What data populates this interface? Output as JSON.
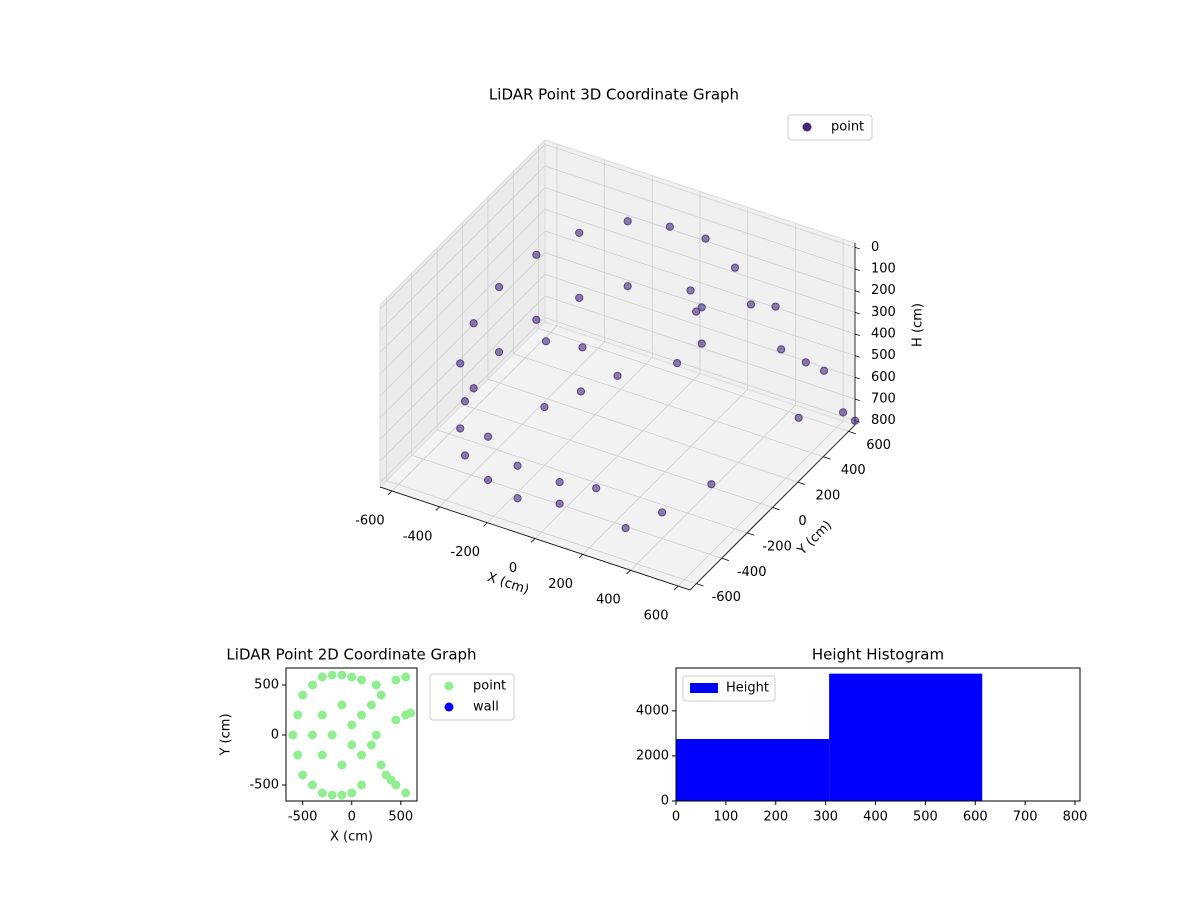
{
  "chart_data": [
    {
      "type": "scatter3d",
      "title": "LiDAR Point 3D Coordinate Graph",
      "xlabel": "X (cm)",
      "ylabel": "Y (cm)",
      "zlabel": "H (cm)",
      "legend": "upper right",
      "xlim": [
        -650,
        650
      ],
      "ylim": [
        -650,
        650
      ],
      "zlim": [
        820,
        -20
      ],
      "xticks": [
        -600,
        -400,
        -200,
        0,
        200,
        400,
        600
      ],
      "yticks": [
        -600,
        -400,
        -200,
        0,
        200,
        400,
        600
      ],
      "zticks": [
        0,
        100,
        200,
        300,
        400,
        500,
        600,
        700,
        800
      ],
      "series": [
        {
          "name": "point",
          "color": "#46287a",
          "x": [
            -500,
            -400,
            -250,
            -100,
            50,
            200,
            -550,
            -550,
            -500,
            -400,
            -250,
            -100,
            50,
            150,
            -500,
            -400,
            -250,
            -550,
            -550,
            -500,
            -400,
            -250,
            -100,
            50,
            -300,
            -200,
            -100,
            0,
            -200,
            200,
            250,
            220,
            300,
            250,
            400,
            450,
            500,
            550,
            600,
            600,
            500,
            400,
            300,
            600,
            650
          ],
          "y": [
            300,
            450,
            550,
            600,
            600,
            550,
            100,
            -100,
            -300,
            -450,
            -550,
            -600,
            -550,
            -450,
            300,
            450,
            550,
            100,
            -100,
            -300,
            -450,
            -550,
            -600,
            -550,
            0,
            100,
            -100,
            0,
            -200,
            200,
            150,
            250,
            100,
            0,
            300,
            400,
            350,
            450,
            500,
            300,
            -200,
            -400,
            -500,
            650,
            650
          ],
          "z": [
            250,
            200,
            150,
            150,
            150,
            200,
            300,
            350,
            400,
            450,
            500,
            550,
            600,
            650,
            550,
            500,
            450,
            600,
            650,
            700,
            700,
            700,
            700,
            700,
            400,
            450,
            500,
            450,
            550,
            100,
            150,
            200,
            250,
            300,
            150,
            200,
            350,
            450,
            500,
            600,
            650,
            700,
            750,
            780,
            800
          ]
        }
      ]
    },
    {
      "type": "scatter",
      "title": "LiDAR Point 2D Coordinate Graph",
      "xlabel": "X (cm)",
      "ylabel": "Y (cm)",
      "legend": "outside right",
      "xlim": [
        -670,
        665
      ],
      "ylim": [
        -660,
        670
      ],
      "xticks": [
        -500,
        0,
        500
      ],
      "yticks": [
        -500,
        0,
        500
      ],
      "series": [
        {
          "name": "point",
          "color": "#90ee90",
          "x": [
            -600,
            -550,
            -550,
            -500,
            -500,
            -400,
            -400,
            -300,
            -300,
            -200,
            -200,
            -100,
            -100,
            0,
            0,
            100,
            100,
            -400,
            -300,
            -300,
            -200,
            -100,
            -100,
            0,
            0,
            100,
            100,
            200,
            200,
            250,
            300,
            250,
            300,
            350,
            400,
            450,
            550,
            450,
            550,
            450,
            550,
            600
          ],
          "y": [
            0,
            200,
            -200,
            400,
            -400,
            500,
            -500,
            580,
            -580,
            600,
            -600,
            600,
            -600,
            580,
            -580,
            550,
            -500,
            0,
            200,
            -200,
            0,
            300,
            -300,
            100,
            -100,
            200,
            -200,
            300,
            -100,
            500,
            400,
            0,
            -300,
            -400,
            -450,
            -500,
            -580,
            550,
            580,
            150,
            200,
            220
          ]
        },
        {
          "name": "wall",
          "color": "#0000ff",
          "x": [],
          "y": []
        }
      ]
    },
    {
      "type": "histogram",
      "title": "Height Histogram",
      "legend": "upper left",
      "xlim": [
        0,
        810
      ],
      "ylim": [
        0,
        5900
      ],
      "xticks": [
        0,
        100,
        200,
        300,
        400,
        500,
        600,
        700,
        800
      ],
      "yticks": [
        0,
        2000,
        4000
      ],
      "series": [
        {
          "name": "Height",
          "color": "#0000ff",
          "bins": [
            0,
            307,
            614,
            810
          ],
          "values": [
            2750,
            5650,
            0
          ]
        }
      ]
    }
  ]
}
